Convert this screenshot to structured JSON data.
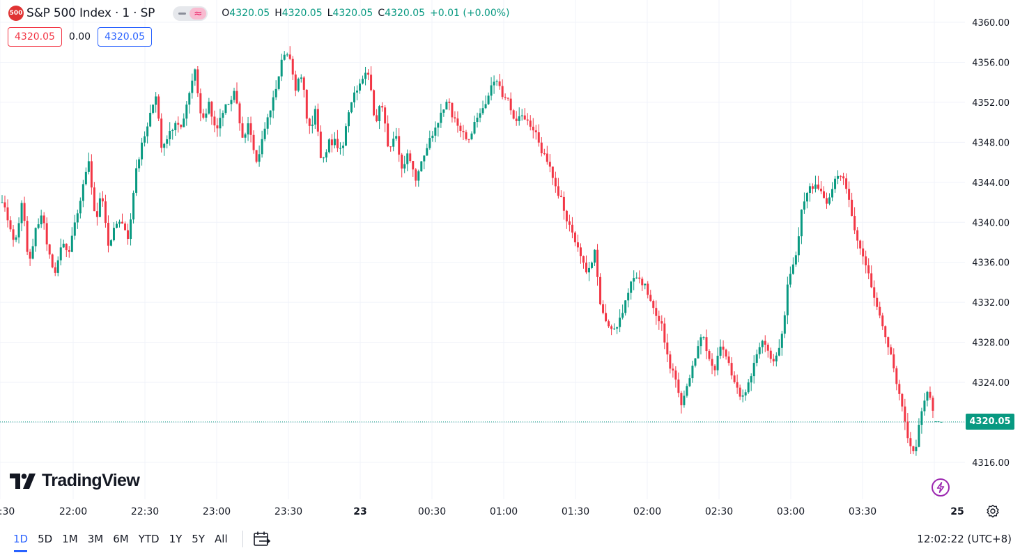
{
  "symbol": {
    "badge": "500",
    "title": "S&P 500 Index · 1 · SP",
    "badge_color": "#e03333"
  },
  "ohlc": {
    "open_key": "O",
    "open": "4320.05",
    "high_key": "H",
    "high": "4320.05",
    "low_key": "L",
    "low": "4320.05",
    "close_key": "C",
    "close": "4320.05",
    "change": "+0.01 (+0.00%)"
  },
  "quote": {
    "bid": "4320.05",
    "spread": "0.00",
    "ask": "4320.05"
  },
  "price_axis": {
    "labels": [
      "4360.00",
      "4356.00",
      "4352.00",
      "4348.00",
      "4344.00",
      "4340.00",
      "4336.00",
      "4332.00",
      "4328.00",
      "4324.00",
      "4316.00"
    ],
    "last_price": "4320.05"
  },
  "time_axis": {
    "labels": [
      ":30",
      "22:00",
      "22:30",
      "23:00",
      "23:30",
      "23",
      "00:30",
      "01:00",
      "01:30",
      "02:00",
      "02:30",
      "03:00",
      "03:30",
      "25"
    ]
  },
  "logo_text": "TradingView",
  "ranges": [
    "1D",
    "5D",
    "1M",
    "3M",
    "6M",
    "YTD",
    "1Y",
    "5Y",
    "All"
  ],
  "active_range": "1D",
  "clock": "12:02:22 (UTC+8)",
  "colors": {
    "up": "#089981",
    "down": "#f23645",
    "grid": "#f0f3fa",
    "accent": "#2962ff"
  },
  "icons": {
    "goto_date": "calendar-arrow-icon",
    "settings": "gear-icon",
    "bolt": "lightning-icon"
  },
  "chart_data": {
    "type": "candlestick",
    "interval": "1 minute",
    "ylim": [
      4314.5,
      4361.5
    ],
    "path": [
      [
        4342,
        4340
      ],
      [
        4338,
        4342
      ],
      [
        4336,
        4339
      ],
      [
        4341,
        4337
      ],
      [
        4335,
        4338
      ],
      [
        4337,
        4340
      ],
      [
        4343,
        4346
      ],
      [
        4340,
        4343
      ],
      [
        4337,
        4340
      ],
      [
        4340,
        4338
      ],
      [
        4345,
        4348
      ],
      [
        4350,
        4353
      ],
      [
        4347,
        4349
      ],
      [
        4350,
        4349
      ],
      [
        4353,
        4355
      ],
      [
        4350,
        4352
      ],
      [
        4349,
        4351
      ],
      [
        4352,
        4353
      ],
      [
        4348,
        4350
      ],
      [
        4346,
        4348
      ],
      [
        4351,
        4353
      ],
      [
        4356,
        4357
      ],
      [
        4353,
        4355
      ],
      [
        4349,
        4351
      ],
      [
        4346,
        4348
      ],
      [
        4348,
        4347
      ],
      [
        4351,
        4353
      ],
      [
        4354,
        4355
      ],
      [
        4350,
        4352
      ],
      [
        4347,
        4349
      ],
      [
        4345,
        4347
      ],
      [
        4344,
        4346
      ],
      [
        4348,
        4349
      ],
      [
        4351,
        4352
      ],
      [
        4350,
        4349
      ],
      [
        4348,
        4350
      ],
      [
        4351,
        4353
      ],
      [
        4354,
        4353
      ],
      [
        4352,
        4350
      ],
      [
        4351,
        4350
      ],
      [
        4349,
        4347
      ],
      [
        4346,
        4344
      ],
      [
        4342,
        4340
      ],
      [
        4338,
        4336
      ],
      [
        4335,
        4337
      ],
      [
        4331,
        4330
      ],
      [
        4329,
        4331
      ],
      [
        4333,
        4335
      ],
      [
        4334,
        4333
      ],
      [
        4331,
        4330
      ],
      [
        4326,
        4325
      ],
      [
        4322,
        4324
      ],
      [
        4326,
        4329
      ],
      [
        4327,
        4325
      ],
      [
        4328,
        4326
      ],
      [
        4324,
        4322
      ],
      [
        4324,
        4326
      ],
      [
        4328,
        4327
      ],
      [
        4326,
        4328
      ],
      [
        4334,
        4336
      ],
      [
        4341,
        4343
      ],
      [
        4344,
        4343
      ],
      [
        4342,
        4344
      ],
      [
        4345,
        4343
      ],
      [
        4339,
        4337
      ],
      [
        4335,
        4332
      ],
      [
        4330,
        4328
      ],
      [
        4325,
        4322
      ],
      [
        4318,
        4317
      ],
      [
        4321,
        4323
      ],
      [
        4321,
        4320
      ]
    ]
  }
}
